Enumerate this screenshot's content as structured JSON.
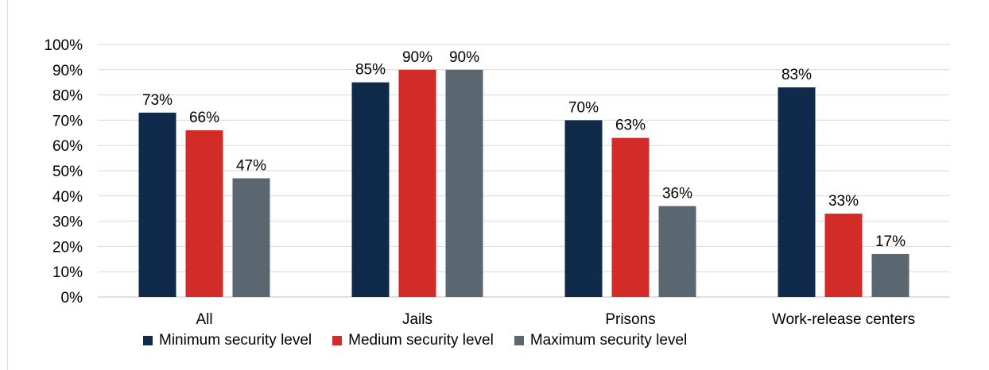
{
  "chart_data": {
    "type": "bar",
    "categories": [
      "All",
      "Jails",
      "Prisons",
      "Work-release centers"
    ],
    "series": [
      {
        "name": "Minimum security level",
        "color": "#0f2a4a",
        "values": [
          73,
          85,
          70,
          83
        ],
        "labels": [
          "73%",
          "85%",
          "70%",
          "83%"
        ]
      },
      {
        "name": "Medium security level",
        "color": "#d32b27",
        "values": [
          66,
          90,
          63,
          33
        ],
        "labels": [
          "66%",
          "90%",
          "63%",
          "33%"
        ]
      },
      {
        "name": "Maximum security level",
        "color": "#5a6670",
        "values": [
          47,
          90,
          36,
          17
        ],
        "labels": [
          "47%",
          "90%",
          "36%",
          "17%"
        ]
      }
    ],
    "y_ticks": [
      "0%",
      "10%",
      "20%",
      "30%",
      "40%",
      "50%",
      "60%",
      "70%",
      "80%",
      "90%",
      "100%"
    ],
    "ylim": [
      0,
      100
    ],
    "grid": true,
    "legend_position": "bottom",
    "title": "",
    "xlabel": "",
    "ylabel": ""
  }
}
